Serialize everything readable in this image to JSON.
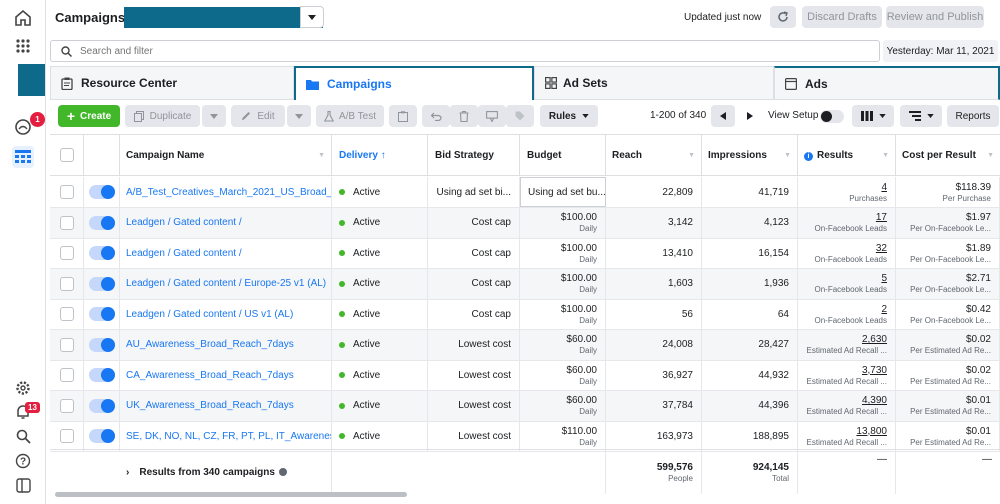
{
  "rail": {
    "notif_badge": "1",
    "alert_badge": "13",
    "icons": [
      "home-icon",
      "apps-grid-icon",
      "account-icon",
      "notifications-icon",
      "ads-manager-table-icon",
      "settings-icon",
      "alerts-icon",
      "search-icon",
      "help-icon",
      "sidebar-toggle-icon"
    ]
  },
  "header": {
    "title": "Campaigns",
    "updated": "Updated just now",
    "discard": "Discard Drafts",
    "review": "Review and Publish"
  },
  "search": {
    "placeholder": "Search and filter",
    "date": "Yesterday: Mar 11, 2021"
  },
  "tabs": {
    "resource": "Resource Center",
    "campaigns": "Campaigns",
    "adsets": "Ad Sets",
    "ads": "Ads"
  },
  "toolbar": {
    "create": "Create",
    "duplicate": "Duplicate",
    "edit": "Edit",
    "abtest": "A/B Test",
    "rules": "Rules",
    "pagination": "1-200 of 340",
    "view_setup": "View Setup",
    "reports": "Reports"
  },
  "columns": {
    "name": "Campaign Name",
    "delivery": "Delivery ↑",
    "bid": "Bid Strategy",
    "budget": "Budget",
    "reach": "Reach",
    "impressions": "Impressions",
    "results": "Results",
    "cpr": "Cost per Result"
  },
  "rows": [
    {
      "name": "A/B_Test_Creatives_March_2021_US_Broad_...",
      "delivery": "Active",
      "bid": "Using ad set bi...",
      "budget": "Using ad set bu...",
      "budget_sub": "",
      "reach": "22,809",
      "impressions": "41,719",
      "results": "4",
      "results_sub": "Purchases",
      "cpr": "$118.39",
      "cpr_sub": "Per Purchase"
    },
    {
      "name": "Leadgen / Gated content /",
      "delivery": "Active",
      "bid": "Cost cap",
      "budget": "$100.00",
      "budget_sub": "Daily",
      "reach": "3,142",
      "impressions": "4,123",
      "results": "17",
      "results_sub": "On-Facebook Leads",
      "cpr": "$1.97",
      "cpr_sub": "Per On-Facebook Le..."
    },
    {
      "name": "Leadgen / Gated content /",
      "delivery": "Active",
      "bid": "Cost cap",
      "budget": "$100.00",
      "budget_sub": "Daily",
      "reach": "13,410",
      "impressions": "16,154",
      "results": "32",
      "results_sub": "On-Facebook Leads",
      "cpr": "$1.89",
      "cpr_sub": "Per On-Facebook Le..."
    },
    {
      "name": "Leadgen / Gated content / Europe-25 v1 (AL)",
      "delivery": "Active",
      "bid": "Cost cap",
      "budget": "$100.00",
      "budget_sub": "Daily",
      "reach": "1,603",
      "impressions": "1,936",
      "results": "5",
      "results_sub": "On-Facebook Leads",
      "cpr": "$2.71",
      "cpr_sub": "Per On-Facebook Le..."
    },
    {
      "name": "Leadgen / Gated content / US v1 (AL)",
      "delivery": "Active",
      "bid": "Cost cap",
      "budget": "$100.00",
      "budget_sub": "Daily",
      "reach": "56",
      "impressions": "64",
      "results": "2",
      "results_sub": "On-Facebook Leads",
      "cpr": "$0.42",
      "cpr_sub": "Per On-Facebook Le..."
    },
    {
      "name": "AU_Awareness_Broad_Reach_7days",
      "delivery": "Active",
      "bid": "Lowest cost",
      "budget": "$60.00",
      "budget_sub": "Daily",
      "reach": "24,008",
      "impressions": "28,427",
      "results": "2,630",
      "results_sub": "Estimated Ad Recall ...",
      "cpr": "$0.02",
      "cpr_sub": "Per Estimated Ad Re..."
    },
    {
      "name": "CA_Awareness_Broad_Reach_7days",
      "delivery": "Active",
      "bid": "Lowest cost",
      "budget": "$60.00",
      "budget_sub": "Daily",
      "reach": "36,927",
      "impressions": "44,932",
      "results": "3,730",
      "results_sub": "Estimated Ad Recall ...",
      "cpr": "$0.02",
      "cpr_sub": "Per Estimated Ad Re..."
    },
    {
      "name": "UK_Awareness_Broad_Reach_7days",
      "delivery": "Active",
      "bid": "Lowest cost",
      "budget": "$60.00",
      "budget_sub": "Daily",
      "reach": "37,784",
      "impressions": "44,396",
      "results": "4,390",
      "results_sub": "Estimated Ad Recall ...",
      "cpr": "$0.01",
      "cpr_sub": "Per Estimated Ad Re..."
    },
    {
      "name": "SE, DK, NO, NL, CZ, FR, PT, PL, IT_Awareness_...",
      "delivery": "Active",
      "bid": "Lowest cost",
      "budget": "$110.00",
      "budget_sub": "Daily",
      "reach": "163,973",
      "impressions": "188,895",
      "results": "13,800",
      "results_sub": "Estimated Ad Recall ...",
      "cpr": "$0.01",
      "cpr_sub": "Per Estimated Ad Re..."
    }
  ],
  "summary": {
    "label": "Results from 340 campaigns",
    "reach": "599,576",
    "reach_sub": "People",
    "impressions": "924,145",
    "impressions_sub": "Total",
    "results": "—",
    "cpr": "—"
  },
  "colors": {
    "accent": "#1877f2",
    "create": "#42b72a",
    "active": "#42b72a",
    "redacted": "#0e6a8a"
  }
}
